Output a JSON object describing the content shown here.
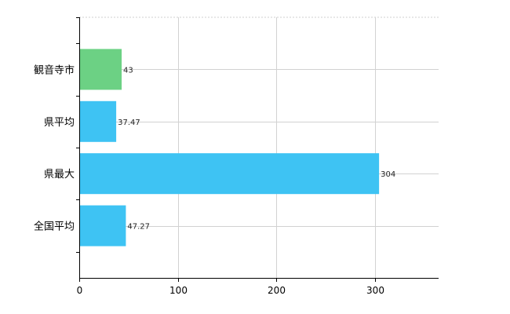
{
  "chart_data": {
    "type": "bar",
    "orientation": "horizontal",
    "categories": [
      "観音寺市",
      "県平均",
      "県最大",
      "全国平均"
    ],
    "values": [
      43,
      37.47,
      304,
      47.27
    ],
    "value_labels": [
      "43",
      "37.47",
      "304",
      "47.27"
    ],
    "colors": [
      "#6cd184",
      "#3ec3f3",
      "#3ec3f3",
      "#3ec3f3"
    ],
    "xlim": [
      0,
      365
    ],
    "xticks": [
      0,
      100,
      200,
      300
    ],
    "xtick_labels": [
      "0",
      "100",
      "200",
      "300"
    ],
    "grid": true,
    "legend": false
  }
}
